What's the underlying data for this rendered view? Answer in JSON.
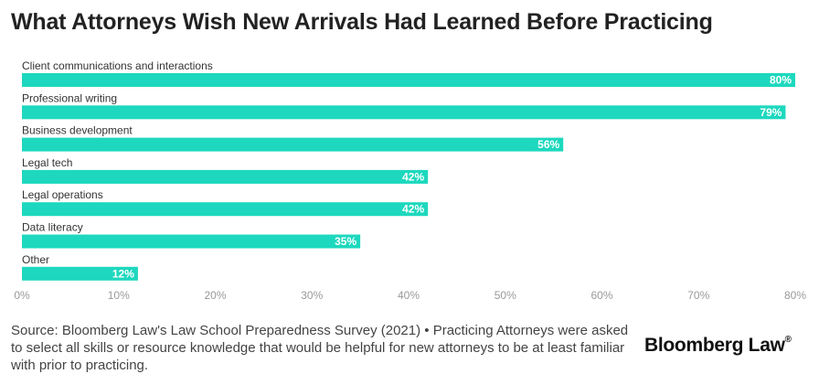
{
  "title": "What Attorneys Wish New Arrivals Had Learned Before Practicing",
  "chart_data": {
    "type": "bar",
    "orientation": "horizontal",
    "categories": [
      "Client communications and interactions",
      "Professional writing",
      "Business development",
      "Legal tech",
      "Legal operations",
      "Data literacy",
      "Other"
    ],
    "values": [
      80,
      79,
      56,
      42,
      42,
      35,
      12
    ],
    "value_labels": [
      "80%",
      "79%",
      "56%",
      "42%",
      "42%",
      "35%",
      "12%"
    ],
    "xlim": [
      0,
      80
    ],
    "xticks": [
      0,
      10,
      20,
      30,
      40,
      50,
      60,
      70,
      80
    ],
    "xtick_labels": [
      "0%",
      "10%",
      "20%",
      "30%",
      "40%",
      "50%",
      "60%",
      "70%",
      "80%"
    ],
    "grid": false,
    "bar_color": "#1dd8be"
  },
  "source": "Source: Bloomberg Law's Law School Preparedness Survey (2021) • Practicing Attorneys were asked to select all skills or resource knowledge that would be helpful for new attorneys to be at least familiar with prior to practicing.",
  "brand": {
    "name": "Bloomberg Law",
    "mark": "®"
  }
}
